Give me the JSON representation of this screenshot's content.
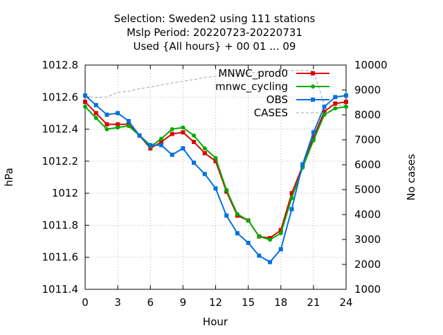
{
  "chart_data": {
    "type": "line",
    "title_lines": [
      "Selection: Sweden2 using   111 stations",
      "Mslp   Period: 20220723-20220731",
      "Used {All hours} + 00 01 ... 09"
    ],
    "xlabel": "Hour",
    "ylabel": "hPa",
    "y2label": "No cases",
    "xlim": [
      0,
      24
    ],
    "ylim": [
      1011.4,
      1012.8
    ],
    "y2lim": [
      1000,
      10000
    ],
    "xticks": [
      "0",
      "3",
      "6",
      "9",
      "12",
      "15",
      "18",
      "21",
      "24"
    ],
    "yticks": [
      "1011.4",
      "1011.6",
      "1011.8",
      "1012",
      "1012.2",
      "1012.4",
      "1012.6",
      "1012.8"
    ],
    "y2ticks": [
      "1000",
      "2000",
      "3000",
      "4000",
      "5000",
      "6000",
      "7000",
      "8000",
      "9000",
      "10000"
    ],
    "grid": true,
    "legend_position": "top-right",
    "x": [
      0,
      1,
      2,
      3,
      4,
      5,
      6,
      7,
      8,
      9,
      10,
      11,
      12,
      13,
      14,
      15,
      16,
      17,
      18,
      19,
      20,
      21,
      22,
      23,
      24
    ],
    "series": [
      {
        "name": "MNWC_prod0",
        "color": "#dd0000",
        "marker": "square",
        "values": [
          1012.57,
          1012.5,
          1012.43,
          1012.43,
          1012.43,
          1012.36,
          1012.28,
          1012.32,
          1012.37,
          1012.38,
          1012.32,
          1012.25,
          1012.2,
          1012.01,
          1011.86,
          1011.83,
          1011.73,
          1011.72,
          1011.77,
          1012.0,
          1012.17,
          1012.35,
          1012.51,
          1012.56,
          1012.57
        ]
      },
      {
        "name": "mnwc_cycling",
        "color": "#00aa00",
        "marker": "circle",
        "values": [
          1012.54,
          1012.47,
          1012.4,
          1012.41,
          1012.42,
          1012.36,
          1012.29,
          1012.34,
          1012.4,
          1012.41,
          1012.36,
          1012.28,
          1012.22,
          1012.02,
          1011.87,
          1011.83,
          1011.73,
          1011.71,
          1011.75,
          1011.97,
          1012.16,
          1012.33,
          1012.49,
          1012.53,
          1012.54
        ]
      },
      {
        "name": "OBS",
        "color": "#0070e0",
        "marker": "square",
        "values": [
          1012.61,
          1012.55,
          1012.49,
          1012.5,
          1012.45,
          1012.36,
          1012.3,
          1012.3,
          1012.24,
          1012.28,
          1012.19,
          1012.12,
          1012.03,
          1011.86,
          1011.75,
          1011.69,
          1011.61,
          1011.57,
          1011.65,
          1011.9,
          1012.18,
          1012.38,
          1012.54,
          1012.6,
          1012.61
        ]
      },
      {
        "name": "CASES",
        "color": "#a0a0a0",
        "dash": true,
        "axis": "y2",
        "values": [
          8750,
          8700,
          8720,
          8900,
          8950,
          9050,
          9120,
          9200,
          9280,
          9350,
          9420,
          9500,
          9550,
          9620,
          9650,
          9680,
          9720,
          9740,
          9760,
          9780,
          9780,
          9770,
          8400,
          8380,
          8400
        ]
      }
    ]
  }
}
